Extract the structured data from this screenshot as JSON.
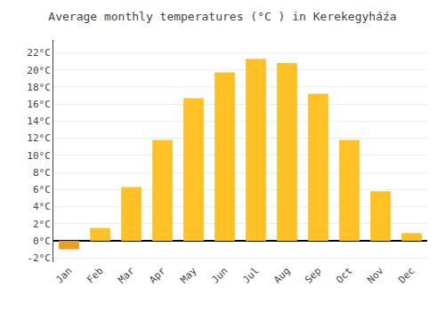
{
  "chart_data": {
    "type": "bar",
    "title": "Average monthly temperatures (°C ) in Kerekegyháźa",
    "categories": [
      "Jan",
      "Feb",
      "Mar",
      "Apr",
      "May",
      "Jun",
      "Jul",
      "Aug",
      "Sep",
      "Oct",
      "Nov",
      "Dec"
    ],
    "values": [
      -1.0,
      1.5,
      6.3,
      11.8,
      16.7,
      19.7,
      21.3,
      20.8,
      17.2,
      11.8,
      5.8,
      0.9
    ],
    "colors": [
      "#E8A020",
      "#FFC125",
      "#FFC125",
      "#FFC125",
      "#FFC125",
      "#FFC125",
      "#FFC125",
      "#FFC125",
      "#FFC125",
      "#FFC125",
      "#FFC125",
      "#FFC125"
    ],
    "ylim": [
      -2.5,
      23.5
    ],
    "yticks": [
      {
        "value": -2,
        "label": "-2°C"
      },
      {
        "value": 0,
        "label": "0°C"
      },
      {
        "value": 2,
        "label": "2°C"
      },
      {
        "value": 4,
        "label": "4°C"
      },
      {
        "value": 6,
        "label": "6°C"
      },
      {
        "value": 8,
        "label": "8°C"
      },
      {
        "value": 10,
        "label": "10°C"
      },
      {
        "value": 12,
        "label": "12°C"
      },
      {
        "value": 14,
        "label": "14°C"
      },
      {
        "value": 16,
        "label": "16°C"
      },
      {
        "value": 18,
        "label": "18°C"
      },
      {
        "value": 20,
        "label": "20°C"
      },
      {
        "value": 22,
        "label": "22°C"
      }
    ],
    "grid": true
  }
}
